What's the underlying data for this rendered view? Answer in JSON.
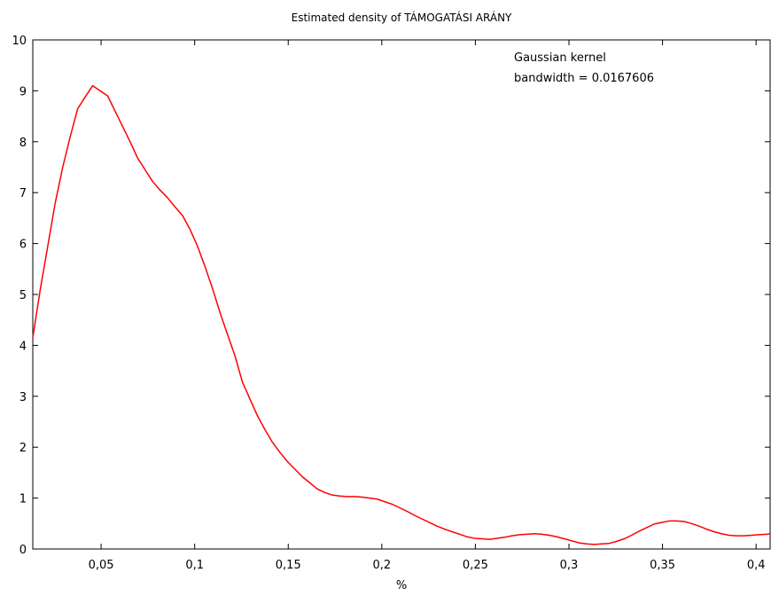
{
  "chart_data": {
    "type": "line",
    "title": "Estimated density of TÁMOGATÁSI ARÁNY",
    "xlabel": "%",
    "ylabel": "",
    "xlim": [
      0.0135,
      0.4075
    ],
    "ylim": [
      0,
      10
    ],
    "x_ticks": [
      {
        "value": 0.05,
        "label": "0,05"
      },
      {
        "value": 0.1,
        "label": "0,1"
      },
      {
        "value": 0.15,
        "label": "0,15"
      },
      {
        "value": 0.2,
        "label": "0,2"
      },
      {
        "value": 0.25,
        "label": "0,25"
      },
      {
        "value": 0.3,
        "label": "0,3"
      },
      {
        "value": 0.35,
        "label": "0,35"
      },
      {
        "value": 0.4,
        "label": "0,4"
      }
    ],
    "y_ticks": [
      {
        "value": 0,
        "label": "0"
      },
      {
        "value": 1,
        "label": "1"
      },
      {
        "value": 2,
        "label": "2"
      },
      {
        "value": 3,
        "label": "3"
      },
      {
        "value": 4,
        "label": "4"
      },
      {
        "value": 5,
        "label": "5"
      },
      {
        "value": 6,
        "label": "6"
      },
      {
        "value": 7,
        "label": "7"
      },
      {
        "value": 8,
        "label": "8"
      },
      {
        "value": 9,
        "label": "9"
      },
      {
        "value": 10,
        "label": "10"
      }
    ],
    "grid": false,
    "annotations": [
      "Gaussian kernel",
      "bandwidth = 0.0167606"
    ],
    "series": [
      {
        "color": "#ff0000",
        "x": [
          0.0135,
          0.0175,
          0.0215,
          0.0255,
          0.0295,
          0.0335,
          0.0375,
          0.0415,
          0.0455,
          0.0495,
          0.0535,
          0.0575,
          0.0615,
          0.0655,
          0.0695,
          0.0735,
          0.0775,
          0.0815,
          0.0855,
          0.0895,
          0.0935,
          0.0975,
          0.1015,
          0.1055,
          0.1095,
          0.1135,
          0.1175,
          0.1215,
          0.1255,
          0.1295,
          0.1335,
          0.1375,
          0.1415,
          0.1455,
          0.1495,
          0.1535,
          0.1575,
          0.1615,
          0.1655,
          0.1695,
          0.1735,
          0.1775,
          0.1815,
          0.1855,
          0.1895,
          0.1935,
          0.1975,
          0.2015,
          0.2055,
          0.2095,
          0.2135,
          0.2175,
          0.2215,
          0.2255,
          0.2295,
          0.2335,
          0.2375,
          0.2415,
          0.2455,
          0.2495,
          0.2535,
          0.2575,
          0.2615,
          0.2655,
          0.2695,
          0.2735,
          0.2775,
          0.2815,
          0.2855,
          0.2895,
          0.2935,
          0.2975,
          0.3015,
          0.3055,
          0.3095,
          0.3135,
          0.3175,
          0.3215,
          0.3255,
          0.3295,
          0.3335,
          0.3375,
          0.3415,
          0.3455,
          0.3495,
          0.3535,
          0.3575,
          0.3615,
          0.3655,
          0.3695,
          0.3735,
          0.3775,
          0.3815,
          0.3855,
          0.3895,
          0.3935,
          0.3975,
          0.4015,
          0.4055,
          0.4075
        ],
        "y": [
          4.15,
          5.1,
          5.95,
          6.8,
          7.5,
          8.1,
          8.65,
          8.88,
          9.1,
          9.0,
          8.9,
          8.6,
          8.3,
          8.0,
          7.68,
          7.45,
          7.22,
          7.05,
          6.9,
          6.72,
          6.55,
          6.28,
          5.95,
          5.55,
          5.12,
          4.65,
          4.22,
          3.8,
          3.28,
          2.95,
          2.62,
          2.35,
          2.1,
          1.9,
          1.72,
          1.57,
          1.42,
          1.3,
          1.18,
          1.11,
          1.06,
          1.04,
          1.03,
          1.03,
          1.02,
          1.0,
          0.98,
          0.93,
          0.88,
          0.81,
          0.74,
          0.66,
          0.59,
          0.52,
          0.45,
          0.39,
          0.34,
          0.29,
          0.24,
          0.21,
          0.2,
          0.19,
          0.21,
          0.23,
          0.26,
          0.28,
          0.29,
          0.3,
          0.29,
          0.27,
          0.24,
          0.2,
          0.16,
          0.12,
          0.1,
          0.09,
          0.1,
          0.11,
          0.15,
          0.2,
          0.27,
          0.35,
          0.42,
          0.49,
          0.52,
          0.55,
          0.55,
          0.54,
          0.5,
          0.45,
          0.39,
          0.34,
          0.3,
          0.27,
          0.26,
          0.26,
          0.27,
          0.28,
          0.29,
          0.3
        ]
      }
    ]
  }
}
